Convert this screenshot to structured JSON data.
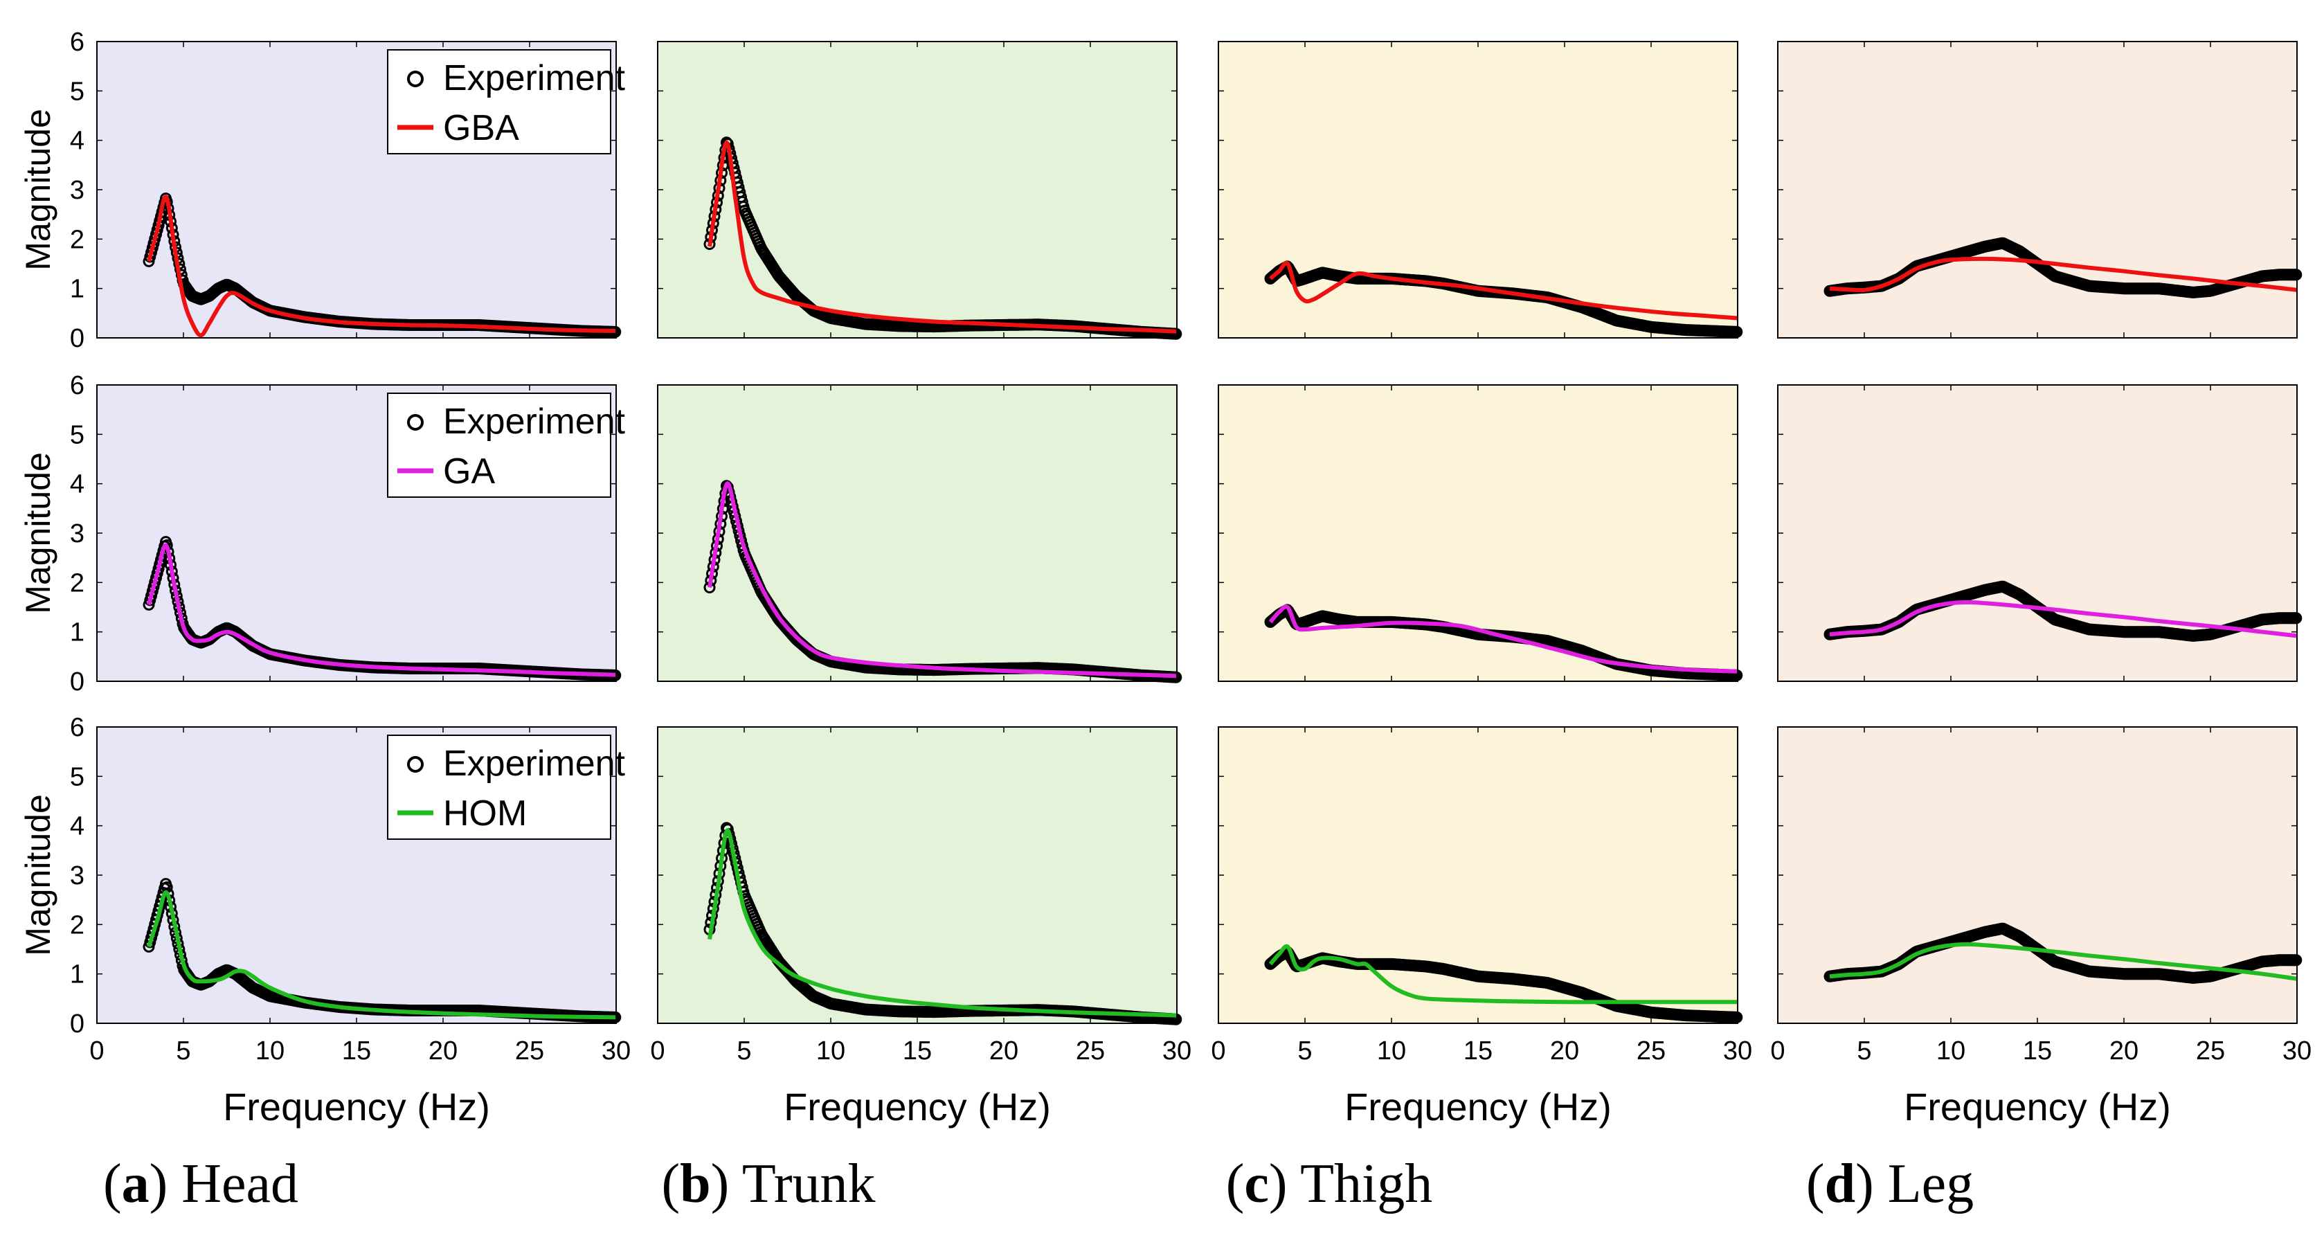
{
  "colors": {
    "panel_bg": [
      "#e6e6f7",
      "#e5f2da",
      "#fcf4d8",
      "#fbece2"
    ],
    "experiment": "#000000",
    "GBA": "#ee1111",
    "GA": "#e020e0",
    "HOM": "#22bb22"
  },
  "legend": {
    "experiment": "Experiment",
    "models": [
      "GBA",
      "GA",
      "HOM"
    ]
  },
  "captions": [
    {
      "letter": "a",
      "name": "Head"
    },
    {
      "letter": "b",
      "name": "Trunk"
    },
    {
      "letter": "c",
      "name": "Thigh"
    },
    {
      "letter": "d",
      "name": "Leg"
    }
  ],
  "chart_data": {
    "type": "line",
    "layout": "3 rows (GBA, GA, HOM) x 4 columns (Head, Trunk, Thigh, Leg)",
    "xlabel": "Frequency (Hz)",
    "ylabel": "Magnitude",
    "xlim": [
      0,
      30
    ],
    "ylim": [
      0,
      6
    ],
    "xticks": [
      0,
      5,
      10,
      15,
      20,
      25,
      30
    ],
    "yticks": [
      0,
      1,
      2,
      3,
      4,
      5,
      6
    ],
    "experiment": {
      "Head": [
        [
          3,
          1.55
        ],
        [
          3.5,
          2.2
        ],
        [
          4,
          2.85
        ],
        [
          4.5,
          1.9
        ],
        [
          5,
          1.1
        ],
        [
          5.5,
          0.85
        ],
        [
          6,
          0.78
        ],
        [
          6.5,
          0.85
        ],
        [
          7,
          1.0
        ],
        [
          7.5,
          1.08
        ],
        [
          8,
          1.0
        ],
        [
          9,
          0.72
        ],
        [
          10,
          0.55
        ],
        [
          12,
          0.42
        ],
        [
          14,
          0.33
        ],
        [
          16,
          0.28
        ],
        [
          18,
          0.26
        ],
        [
          20,
          0.26
        ],
        [
          22,
          0.26
        ],
        [
          24,
          0.22
        ],
        [
          26,
          0.18
        ],
        [
          28,
          0.14
        ],
        [
          30,
          0.12
        ]
      ],
      "Trunk": [
        [
          3,
          1.9
        ],
        [
          3.5,
          2.9
        ],
        [
          4,
          4.0
        ],
        [
          4.5,
          3.3
        ],
        [
          5,
          2.6
        ],
        [
          6,
          1.8
        ],
        [
          7,
          1.25
        ],
        [
          8,
          0.85
        ],
        [
          9,
          0.55
        ],
        [
          10,
          0.4
        ],
        [
          12,
          0.28
        ],
        [
          14,
          0.24
        ],
        [
          16,
          0.23
        ],
        [
          18,
          0.25
        ],
        [
          20,
          0.26
        ],
        [
          22,
          0.27
        ],
        [
          24,
          0.24
        ],
        [
          26,
          0.18
        ],
        [
          28,
          0.12
        ],
        [
          30,
          0.08
        ]
      ],
      "Thigh": [
        [
          3,
          1.2
        ],
        [
          3.5,
          1.35
        ],
        [
          4,
          1.45
        ],
        [
          4.5,
          1.15
        ],
        [
          5,
          1.2
        ],
        [
          6,
          1.32
        ],
        [
          7,
          1.25
        ],
        [
          8,
          1.2
        ],
        [
          10,
          1.2
        ],
        [
          12,
          1.15
        ],
        [
          13,
          1.1
        ],
        [
          15,
          0.95
        ],
        [
          17,
          0.9
        ],
        [
          19,
          0.82
        ],
        [
          21,
          0.62
        ],
        [
          23,
          0.35
        ],
        [
          25,
          0.22
        ],
        [
          27,
          0.16
        ],
        [
          30,
          0.12
        ]
      ],
      "Leg": [
        [
          3,
          0.95
        ],
        [
          4,
          1.0
        ],
        [
          5,
          1.02
        ],
        [
          6,
          1.05
        ],
        [
          7,
          1.2
        ],
        [
          8,
          1.45
        ],
        [
          10,
          1.65
        ],
        [
          11,
          1.75
        ],
        [
          12,
          1.85
        ],
        [
          13,
          1.92
        ],
        [
          14,
          1.75
        ],
        [
          15,
          1.5
        ],
        [
          16,
          1.25
        ],
        [
          18,
          1.05
        ],
        [
          20,
          1.0
        ],
        [
          22,
          1.0
        ],
        [
          24,
          0.92
        ],
        [
          25,
          0.95
        ],
        [
          26,
          1.05
        ],
        [
          27,
          1.15
        ],
        [
          28,
          1.25
        ],
        [
          29,
          1.28
        ],
        [
          30,
          1.28
        ]
      ]
    },
    "models": {
      "GBA": {
        "Head": [
          [
            3,
            1.55
          ],
          [
            3.5,
            2.2
          ],
          [
            4,
            2.85
          ],
          [
            4.5,
            1.8
          ],
          [
            5,
            0.8
          ],
          [
            5.5,
            0.3
          ],
          [
            6,
            0.05
          ],
          [
            6.5,
            0.3
          ],
          [
            7,
            0.6
          ],
          [
            7.5,
            0.85
          ],
          [
            8,
            0.9
          ],
          [
            9,
            0.7
          ],
          [
            10,
            0.55
          ],
          [
            12,
            0.4
          ],
          [
            14,
            0.32
          ],
          [
            16,
            0.28
          ],
          [
            18,
            0.26
          ],
          [
            20,
            0.25
          ],
          [
            22,
            0.23
          ],
          [
            24,
            0.2
          ],
          [
            26,
            0.17
          ],
          [
            28,
            0.15
          ],
          [
            30,
            0.14
          ]
        ],
        "Trunk": [
          [
            3,
            1.85
          ],
          [
            3.5,
            3.0
          ],
          [
            4,
            3.95
          ],
          [
            4.5,
            2.8
          ],
          [
            5,
            1.6
          ],
          [
            5.5,
            1.1
          ],
          [
            6,
            0.92
          ],
          [
            7,
            0.8
          ],
          [
            8,
            0.7
          ],
          [
            10,
            0.55
          ],
          [
            12,
            0.45
          ],
          [
            14,
            0.38
          ],
          [
            16,
            0.33
          ],
          [
            18,
            0.3
          ],
          [
            20,
            0.27
          ],
          [
            22,
            0.24
          ],
          [
            24,
            0.21
          ],
          [
            26,
            0.18
          ],
          [
            28,
            0.16
          ],
          [
            30,
            0.13
          ]
        ],
        "Thigh": [
          [
            3,
            1.2
          ],
          [
            3.5,
            1.35
          ],
          [
            4,
            1.5
          ],
          [
            4.5,
            0.95
          ],
          [
            5,
            0.75
          ],
          [
            5.5,
            0.78
          ],
          [
            6,
            0.88
          ],
          [
            7,
            1.1
          ],
          [
            8,
            1.3
          ],
          [
            9,
            1.25
          ],
          [
            10,
            1.2
          ],
          [
            12,
            1.12
          ],
          [
            14,
            1.05
          ],
          [
            16,
            0.95
          ],
          [
            18,
            0.85
          ],
          [
            20,
            0.75
          ],
          [
            22,
            0.65
          ],
          [
            24,
            0.57
          ],
          [
            26,
            0.5
          ],
          [
            28,
            0.45
          ],
          [
            30,
            0.4
          ]
        ],
        "Leg": [
          [
            3,
            1.0
          ],
          [
            4,
            0.98
          ],
          [
            5,
            0.97
          ],
          [
            6,
            1.05
          ],
          [
            7,
            1.2
          ],
          [
            8,
            1.4
          ],
          [
            9,
            1.52
          ],
          [
            10,
            1.58
          ],
          [
            12,
            1.6
          ],
          [
            14,
            1.57
          ],
          [
            16,
            1.5
          ],
          [
            18,
            1.42
          ],
          [
            20,
            1.35
          ],
          [
            22,
            1.27
          ],
          [
            24,
            1.2
          ],
          [
            26,
            1.12
          ],
          [
            28,
            1.05
          ],
          [
            30,
            0.97
          ]
        ]
      },
      "GA": {
        "Head": [
          [
            3,
            1.55
          ],
          [
            3.5,
            2.2
          ],
          [
            4,
            2.75
          ],
          [
            4.5,
            1.9
          ],
          [
            5,
            1.1
          ],
          [
            5.5,
            0.85
          ],
          [
            6,
            0.82
          ],
          [
            6.5,
            0.85
          ],
          [
            7,
            0.95
          ],
          [
            7.5,
            1.0
          ],
          [
            8,
            0.95
          ],
          [
            9,
            0.75
          ],
          [
            10,
            0.58
          ],
          [
            12,
            0.43
          ],
          [
            14,
            0.34
          ],
          [
            16,
            0.29
          ],
          [
            18,
            0.26
          ],
          [
            20,
            0.24
          ],
          [
            22,
            0.22
          ],
          [
            24,
            0.2
          ],
          [
            26,
            0.17
          ],
          [
            28,
            0.15
          ],
          [
            30,
            0.13
          ]
        ],
        "Trunk": [
          [
            3,
            1.9
          ],
          [
            3.5,
            3.0
          ],
          [
            4,
            4.0
          ],
          [
            4.5,
            3.4
          ],
          [
            5,
            2.7
          ],
          [
            6,
            1.9
          ],
          [
            7,
            1.3
          ],
          [
            8,
            0.9
          ],
          [
            9,
            0.62
          ],
          [
            10,
            0.48
          ],
          [
            12,
            0.38
          ],
          [
            14,
            0.32
          ],
          [
            16,
            0.27
          ],
          [
            18,
            0.24
          ],
          [
            20,
            0.21
          ],
          [
            22,
            0.19
          ],
          [
            24,
            0.17
          ],
          [
            26,
            0.15
          ],
          [
            28,
            0.13
          ],
          [
            30,
            0.11
          ]
        ],
        "Thigh": [
          [
            3,
            1.2
          ],
          [
            3.5,
            1.4
          ],
          [
            4,
            1.5
          ],
          [
            4.5,
            1.1
          ],
          [
            5,
            1.05
          ],
          [
            6,
            1.08
          ],
          [
            8,
            1.12
          ],
          [
            10,
            1.18
          ],
          [
            12,
            1.17
          ],
          [
            14,
            1.12
          ],
          [
            16,
            0.95
          ],
          [
            18,
            0.78
          ],
          [
            20,
            0.6
          ],
          [
            22,
            0.42
          ],
          [
            24,
            0.32
          ],
          [
            26,
            0.26
          ],
          [
            28,
            0.22
          ],
          [
            30,
            0.2
          ]
        ],
        "Leg": [
          [
            3,
            0.95
          ],
          [
            4,
            0.98
          ],
          [
            5,
            1.0
          ],
          [
            6,
            1.05
          ],
          [
            7,
            1.2
          ],
          [
            8,
            1.4
          ],
          [
            9,
            1.52
          ],
          [
            10,
            1.58
          ],
          [
            11,
            1.6
          ],
          [
            12,
            1.58
          ],
          [
            14,
            1.52
          ],
          [
            16,
            1.45
          ],
          [
            18,
            1.37
          ],
          [
            20,
            1.3
          ],
          [
            22,
            1.22
          ],
          [
            24,
            1.15
          ],
          [
            26,
            1.08
          ],
          [
            28,
            1.0
          ],
          [
            30,
            0.92
          ]
        ]
      },
      "HOM": {
        "Head": [
          [
            3,
            1.55
          ],
          [
            3.5,
            2.1
          ],
          [
            4,
            2.65
          ],
          [
            4.5,
            2.0
          ],
          [
            5,
            1.2
          ],
          [
            5.5,
            0.9
          ],
          [
            6,
            0.85
          ],
          [
            7,
            0.88
          ],
          [
            7.5,
            0.95
          ],
          [
            8,
            1.05
          ],
          [
            8.5,
            1.05
          ],
          [
            9,
            0.95
          ],
          [
            10,
            0.72
          ],
          [
            12,
            0.45
          ],
          [
            14,
            0.33
          ],
          [
            16,
            0.27
          ],
          [
            18,
            0.23
          ],
          [
            20,
            0.2
          ],
          [
            22,
            0.18
          ],
          [
            24,
            0.16
          ],
          [
            26,
            0.14
          ],
          [
            28,
            0.13
          ],
          [
            30,
            0.12
          ]
        ],
        "Trunk": [
          [
            3,
            1.7
          ],
          [
            3.5,
            2.8
          ],
          [
            4,
            3.9
          ],
          [
            4.5,
            3.2
          ],
          [
            5,
            2.3
          ],
          [
            6,
            1.55
          ],
          [
            7,
            1.2
          ],
          [
            8,
            0.95
          ],
          [
            10,
            0.7
          ],
          [
            12,
            0.55
          ],
          [
            14,
            0.45
          ],
          [
            16,
            0.38
          ],
          [
            18,
            0.32
          ],
          [
            20,
            0.28
          ],
          [
            22,
            0.25
          ],
          [
            24,
            0.22
          ],
          [
            26,
            0.2
          ],
          [
            28,
            0.18
          ],
          [
            30,
            0.16
          ]
        ],
        "Thigh": [
          [
            3,
            1.2
          ],
          [
            3.5,
            1.4
          ],
          [
            4,
            1.55
          ],
          [
            4.5,
            1.15
          ],
          [
            5,
            1.1
          ],
          [
            5.5,
            1.25
          ],
          [
            6,
            1.32
          ],
          [
            7,
            1.3
          ],
          [
            8,
            1.2
          ],
          [
            8.5,
            1.2
          ],
          [
            9,
            1.05
          ],
          [
            10,
            0.75
          ],
          [
            11,
            0.58
          ],
          [
            12,
            0.5
          ],
          [
            14,
            0.47
          ],
          [
            16,
            0.45
          ],
          [
            18,
            0.44
          ],
          [
            20,
            0.43
          ],
          [
            22,
            0.43
          ],
          [
            24,
            0.43
          ],
          [
            26,
            0.43
          ],
          [
            28,
            0.43
          ],
          [
            30,
            0.43
          ]
        ],
        "Leg": [
          [
            3,
            0.95
          ],
          [
            4,
            0.98
          ],
          [
            5,
            1.0
          ],
          [
            6,
            1.05
          ],
          [
            7,
            1.2
          ],
          [
            8,
            1.4
          ],
          [
            9,
            1.52
          ],
          [
            10,
            1.58
          ],
          [
            11,
            1.6
          ],
          [
            12,
            1.58
          ],
          [
            14,
            1.52
          ],
          [
            16,
            1.45
          ],
          [
            18,
            1.37
          ],
          [
            20,
            1.3
          ],
          [
            22,
            1.22
          ],
          [
            24,
            1.15
          ],
          [
            26,
            1.08
          ],
          [
            28,
            1.0
          ],
          [
            30,
            0.9
          ]
        ]
      }
    }
  }
}
